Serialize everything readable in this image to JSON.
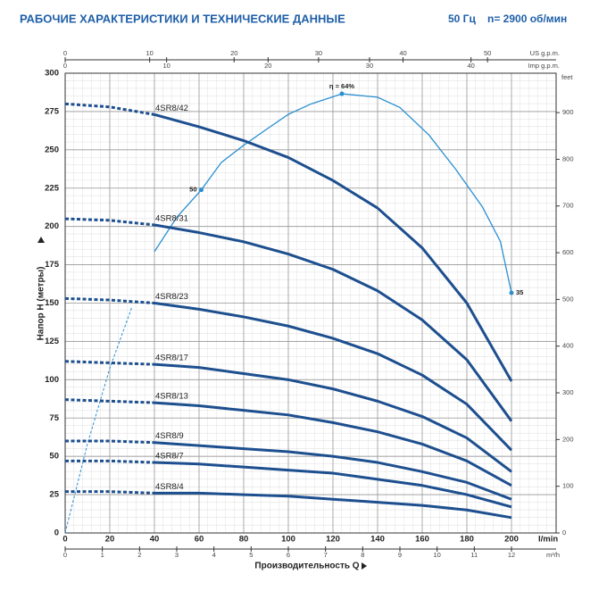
{
  "chart_data": {
    "type": "line",
    "title": "РАБОЧИЕ ХАРАКТЕРИСТИКИ И ТЕХНИЧЕСКИЕ ДАННЫЕ",
    "frequency": "50 Гц",
    "speed": "n= 2900 об/мин",
    "y_label": "Напор H (метры)",
    "x_label": "Производительность Q",
    "x_unit": "l/min",
    "xlim": [
      0,
      220
    ],
    "xticks": [
      0,
      20,
      40,
      60,
      80,
      100,
      120,
      140,
      160,
      180,
      200
    ],
    "ylim": [
      0,
      300
    ],
    "yticks": [
      0,
      25,
      50,
      75,
      100,
      125,
      150,
      175,
      200,
      225,
      250,
      275,
      300
    ],
    "grid": true,
    "x": [
      0,
      20,
      40,
      60,
      80,
      100,
      120,
      140,
      160,
      180,
      200
    ],
    "dash_until": 40,
    "series": [
      {
        "name": "4SR8/42",
        "color": "#1d4f8f",
        "values": [
          280,
          278,
          273,
          265,
          256,
          245,
          230,
          212,
          186,
          150,
          99
        ]
      },
      {
        "name": "4SR8/31",
        "color": "#1d4f8f",
        "values": [
          205,
          204,
          201,
          196,
          190,
          182,
          172,
          158,
          139,
          113,
          73
        ]
      },
      {
        "name": "4SR8/23",
        "color": "#1d4f8f",
        "values": [
          153,
          152,
          150,
          146,
          141,
          135,
          127,
          117,
          103,
          84,
          54
        ]
      },
      {
        "name": "4SR8/17",
        "color": "#1d4f8f",
        "values": [
          112,
          111,
          110,
          108,
          104,
          100,
          94,
          86,
          76,
          62,
          40
        ]
      },
      {
        "name": "4SR8/13",
        "color": "#1d4f8f",
        "values": [
          87,
          86,
          85,
          83,
          80,
          77,
          72,
          66,
          58,
          47,
          31
        ]
      },
      {
        "name": "4SR8/9",
        "color": "#1d4f8f",
        "values": [
          60,
          60,
          59,
          57,
          55,
          53,
          50,
          46,
          40,
          33,
          22
        ]
      },
      {
        "name": "4SR8/7",
        "color": "#1d4f8f",
        "values": [
          47,
          47,
          46,
          45,
          43,
          41,
          39,
          35,
          31,
          25,
          17
        ]
      },
      {
        "name": "4SR8/4",
        "color": "#1d4f8f",
        "values": [
          27,
          27,
          26,
          26,
          25,
          24,
          22,
          20,
          18,
          15,
          10
        ]
      }
    ],
    "efficiency": {
      "color": "#2a8fd2",
      "lim": [
        0,
        67
      ],
      "dash_until": 35,
      "x": [
        0,
        10,
        20,
        30,
        40,
        50,
        61,
        70,
        80,
        91,
        100,
        110,
        124,
        140,
        150,
        163,
        175,
        187,
        195,
        200
      ],
      "values": [
        0,
        13,
        24,
        33,
        41,
        46,
        50,
        54,
        56.5,
        59,
        61,
        62.5,
        64,
        63.5,
        62,
        58,
        53,
        47.5,
        42.5,
        35
      ],
      "points": {
        "x": [
          61,
          124,
          200
        ],
        "values": [
          50,
          64,
          35
        ],
        "value_labels": [
          "50",
          "η = 64%",
          "35"
        ]
      }
    },
    "us_gpm": {
      "label": "US g.p.m.",
      "lim": [
        0,
        58.12
      ],
      "ticks": [
        0,
        10,
        20,
        30,
        40,
        50
      ]
    },
    "imp_gpm": {
      "label": "Imp g.p.m.",
      "lim": [
        0,
        48.39
      ],
      "ticks": [
        0,
        10,
        20,
        30,
        40
      ]
    },
    "m3h": {
      "label": "m³/h",
      "lim": [
        0,
        13.2
      ],
      "ticks": [
        0,
        1,
        2,
        3,
        4,
        5,
        6,
        7,
        8,
        9,
        10,
        11,
        12
      ]
    },
    "feet": {
      "label": "feet",
      "lim": [
        0,
        984.25
      ],
      "ticks": [
        0,
        100,
        200,
        300,
        400,
        500,
        600,
        700,
        800,
        900
      ]
    }
  }
}
